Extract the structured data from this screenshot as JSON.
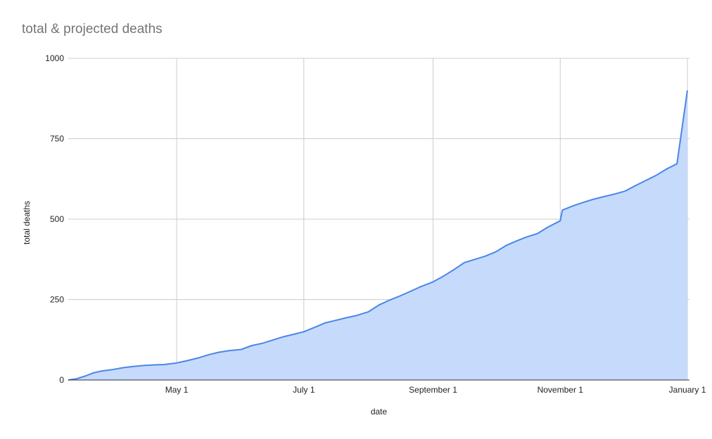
{
  "chart_data": {
    "type": "area",
    "title": "total & projected deaths",
    "xlabel": "date",
    "ylabel": "total deaths",
    "ylim": [
      0,
      1000
    ],
    "yticks": [
      0,
      250,
      500,
      750,
      1000
    ],
    "xlim": [
      "2020-03-10",
      "2021-01-02"
    ],
    "xticks": [
      {
        "date": "2020-05-01",
        "label": "May 1"
      },
      {
        "date": "2020-07-01",
        "label": "July 1"
      },
      {
        "date": "2020-09-01",
        "label": "September 1"
      },
      {
        "date": "2020-11-01",
        "label": "November 1"
      },
      {
        "date": "2021-01-01",
        "label": "January 1"
      }
    ],
    "grid": true,
    "line_color": "#4a86e8",
    "fill_color": "#c6dafc",
    "series": [
      {
        "points": [
          [
            "2020-03-10",
            0
          ],
          [
            "2020-03-14",
            4
          ],
          [
            "2020-03-18",
            12
          ],
          [
            "2020-03-22",
            22
          ],
          [
            "2020-03-26",
            28
          ],
          [
            "2020-03-31",
            32
          ],
          [
            "2020-04-05",
            38
          ],
          [
            "2020-04-10",
            42
          ],
          [
            "2020-04-15",
            45
          ],
          [
            "2020-04-20",
            47
          ],
          [
            "2020-04-25",
            48
          ],
          [
            "2020-05-01",
            53
          ],
          [
            "2020-05-06",
            60
          ],
          [
            "2020-05-11",
            68
          ],
          [
            "2020-05-16",
            78
          ],
          [
            "2020-05-21",
            86
          ],
          [
            "2020-05-26",
            91
          ],
          [
            "2020-06-01",
            95
          ],
          [
            "2020-06-06",
            107
          ],
          [
            "2020-06-11",
            114
          ],
          [
            "2020-06-16",
            124
          ],
          [
            "2020-06-21",
            134
          ],
          [
            "2020-06-26",
            142
          ],
          [
            "2020-07-01",
            150
          ],
          [
            "2020-07-06",
            163
          ],
          [
            "2020-07-11",
            177
          ],
          [
            "2020-07-16",
            185
          ],
          [
            "2020-07-21",
            193
          ],
          [
            "2020-07-26",
            200
          ],
          [
            "2020-08-01",
            212
          ],
          [
            "2020-08-06",
            233
          ],
          [
            "2020-08-11",
            248
          ],
          [
            "2020-08-16",
            261
          ],
          [
            "2020-08-21",
            275
          ],
          [
            "2020-08-26",
            290
          ],
          [
            "2020-09-01",
            305
          ],
          [
            "2020-09-06",
            323
          ],
          [
            "2020-09-11",
            343
          ],
          [
            "2020-09-16",
            365
          ],
          [
            "2020-09-21",
            375
          ],
          [
            "2020-09-26",
            385
          ],
          [
            "2020-10-01",
            398
          ],
          [
            "2020-10-06",
            418
          ],
          [
            "2020-10-11",
            432
          ],
          [
            "2020-10-16",
            445
          ],
          [
            "2020-10-21",
            455
          ],
          [
            "2020-10-26",
            475
          ],
          [
            "2020-11-01",
            495
          ],
          [
            "2020-11-02",
            528
          ],
          [
            "2020-11-07",
            541
          ],
          [
            "2020-11-12",
            552
          ],
          [
            "2020-11-17",
            562
          ],
          [
            "2020-11-22",
            570
          ],
          [
            "2020-11-27",
            578
          ],
          [
            "2020-12-02",
            587
          ],
          [
            "2020-12-07",
            604
          ],
          [
            "2020-12-12",
            620
          ],
          [
            "2020-12-17",
            636
          ],
          [
            "2020-12-22",
            656
          ],
          [
            "2020-12-27",
            672
          ],
          [
            "2021-01-01",
            900
          ]
        ]
      }
    ]
  }
}
